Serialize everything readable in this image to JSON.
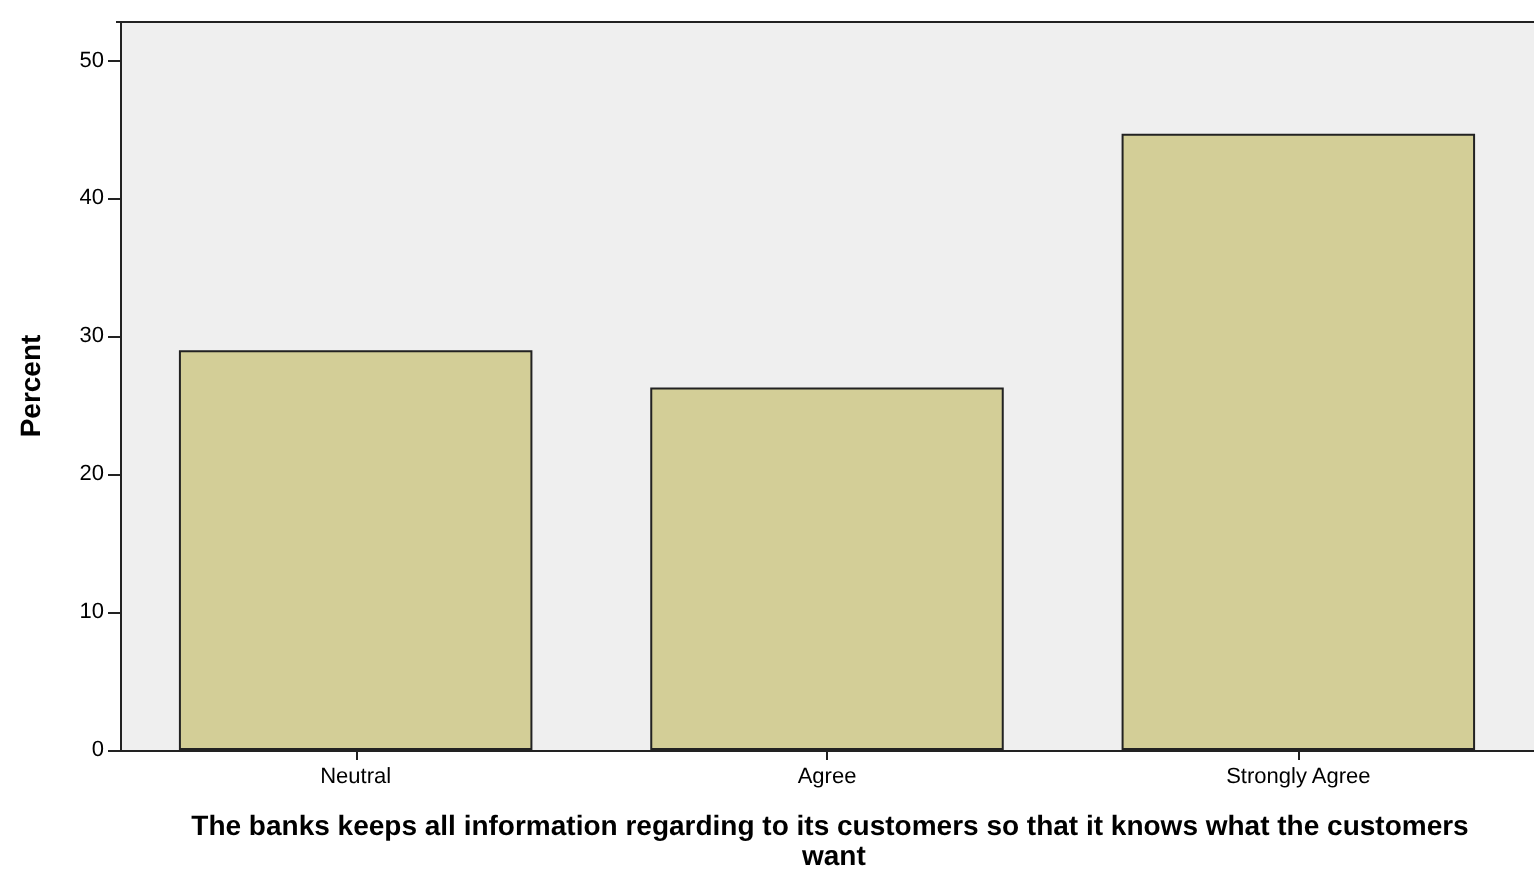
{
  "chart_data": {
    "type": "bar",
    "xlabel": "The banks keeps all information regarding to its customers so that it knows what the customers want",
    "ylabel": "Percent",
    "categories": [
      "Neutral",
      "Agree",
      "Strongly Agree"
    ],
    "values": [
      29.0,
      26.3,
      44.7
    ],
    "color": "#d3ce97",
    "ylim": [
      0,
      52.8
    ],
    "yticks": [
      0,
      10,
      20,
      30,
      40,
      50
    ],
    "grid": false
  }
}
